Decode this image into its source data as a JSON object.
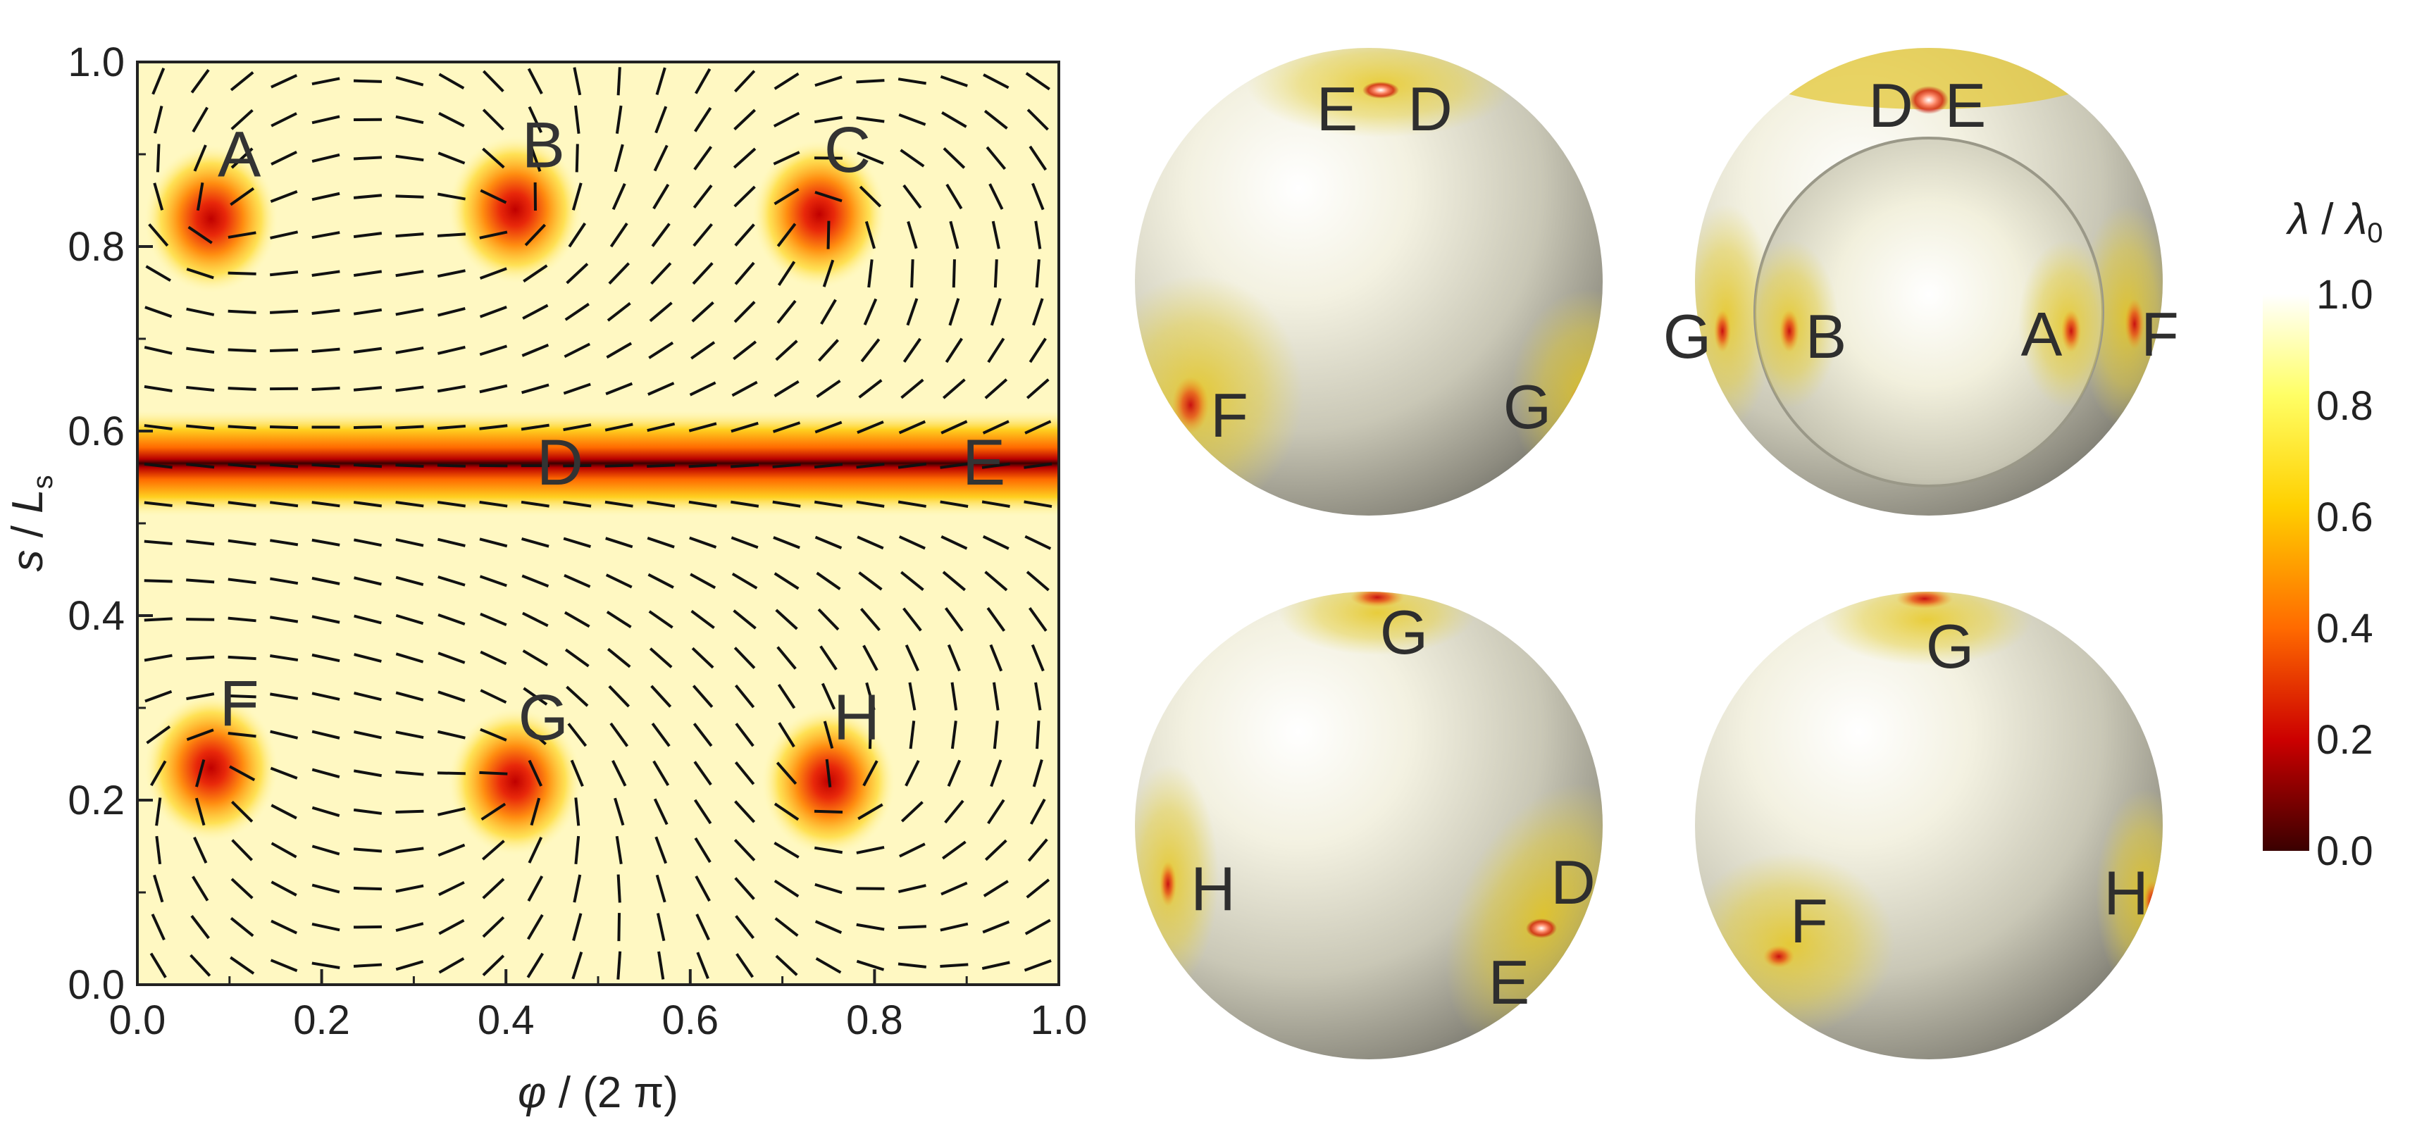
{
  "chart_data": [
    {
      "type": "heatmap",
      "xlabel_var": "φ",
      "xlabel_rest": " / (2 π)",
      "ylabel_var": "s",
      "ylabel_mid": " / ",
      "ylabel_var2": "L",
      "ylabel_sub": "s",
      "xlim": [
        0.0,
        1.0
      ],
      "ylim": [
        0.0,
        1.0
      ],
      "x_ticks": [
        "0.0",
        "0.2",
        "0.4",
        "0.6",
        "0.8",
        "1.0"
      ],
      "y_ticks": [
        "0.0",
        "0.2",
        "0.4",
        "0.6",
        "0.8",
        "1.0"
      ],
      "defects": [
        {
          "label": "A",
          "x": 0.08,
          "y": 0.83
        },
        {
          "label": "B",
          "x": 0.41,
          "y": 0.84
        },
        {
          "label": "C",
          "x": 0.74,
          "y": 0.835
        },
        {
          "label": "F",
          "x": 0.08,
          "y": 0.235
        },
        {
          "label": "G",
          "x": 0.41,
          "y": 0.22
        },
        {
          "label": "H",
          "x": 0.75,
          "y": 0.22
        }
      ],
      "band": {
        "y": 0.565,
        "labels": [
          {
            "label": "D",
            "x": 0.48
          },
          {
            "label": "E",
            "x": 0.94
          }
        ]
      },
      "colorbar": {
        "title_var": "λ",
        "title_mid": " / ",
        "title_var2": "λ",
        "title_sub": "0",
        "range": [
          0.0,
          1.0
        ],
        "ticks": [
          "0.0",
          "0.2",
          "0.4",
          "0.6",
          "0.8",
          "1.0"
        ],
        "colors": [
          "#3a0000",
          "#cc0000",
          "#ff6a00",
          "#ffd000",
          "#ffff66",
          "#ffffff"
        ]
      }
    }
  ],
  "spheres": [
    {
      "labels": [
        "E",
        "D",
        "F",
        "G"
      ]
    },
    {
      "labels": [
        "D",
        "E",
        "G",
        "B",
        "A",
        "F"
      ]
    },
    {
      "labels": [
        "G",
        "H",
        "D",
        "E"
      ]
    },
    {
      "labels": [
        "G",
        "F",
        "H"
      ]
    }
  ]
}
